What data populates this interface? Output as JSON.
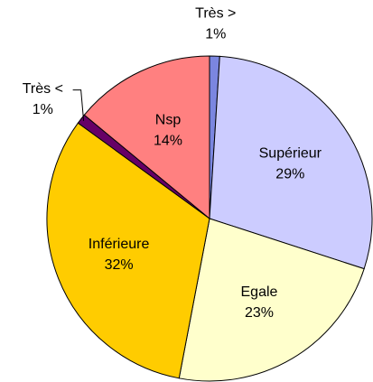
{
  "chart_data": {
    "type": "pie",
    "categories": [
      "Très >",
      "Supérieur",
      "Egale",
      "Inférieure",
      "Très <",
      "Nsp"
    ],
    "values": [
      1,
      29,
      23,
      32,
      1,
      14
    ],
    "value_labels": [
      "1%",
      "29%",
      "23%",
      "32%",
      "1%",
      "14%"
    ],
    "colors": [
      "#7b86e0",
      "#ccccff",
      "#ffffcc",
      "#ffcc00",
      "#660066",
      "#ff8080"
    ]
  }
}
